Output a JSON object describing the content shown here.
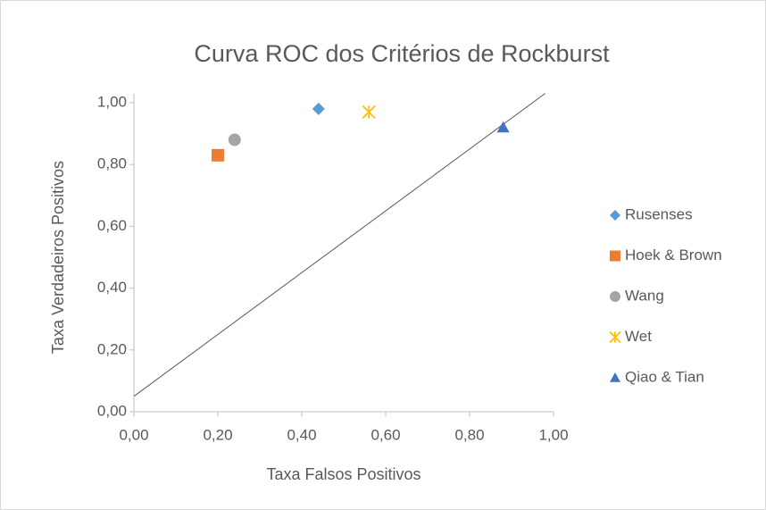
{
  "chart_data": {
    "type": "scatter",
    "title": "Curva ROC dos Critérios de Rockburst",
    "xlabel": "Taxa Falsos Positivos",
    "ylabel": "Taxa Verdadeiros Positivos",
    "xlim": [
      0,
      1
    ],
    "ylim": [
      0,
      1
    ],
    "xticks": [
      {
        "value": 0,
        "label": "0,00"
      },
      {
        "value": 0.2,
        "label": "0,20"
      },
      {
        "value": 0.4,
        "label": "0,40"
      },
      {
        "value": 0.6,
        "label": "0,60"
      },
      {
        "value": 0.8,
        "label": "0,80"
      },
      {
        "value": 1,
        "label": "1,00"
      }
    ],
    "yticks": [
      {
        "value": 0,
        "label": "0,00"
      },
      {
        "value": 0.2,
        "label": "0,20"
      },
      {
        "value": 0.4,
        "label": "0,40"
      },
      {
        "value": 0.6,
        "label": "0,60"
      },
      {
        "value": 0.8,
        "label": "0,80"
      },
      {
        "value": 1,
        "label": "1,00"
      }
    ],
    "grid": false,
    "legend": "right",
    "series": [
      {
        "name": "Rusenses",
        "color": "#5b9bd5",
        "marker": "diamond",
        "x": [
          0.44
        ],
        "y": [
          0.98
        ]
      },
      {
        "name": "Hoek & Brown",
        "color": "#ed7d31",
        "marker": "square",
        "x": [
          0.2
        ],
        "y": [
          0.83
        ]
      },
      {
        "name": "Wang",
        "color": "#a5a5a5",
        "marker": "circle",
        "x": [
          0.24
        ],
        "y": [
          0.88
        ]
      },
      {
        "name": "Wet",
        "color": "#ffc000",
        "marker": "asterisk",
        "x": [
          0.56
        ],
        "y": [
          0.97
        ]
      },
      {
        "name": "Qiao &  Tian",
        "color": "#4472c4",
        "marker": "triangle",
        "x": [
          0.88
        ],
        "y": [
          0.92
        ]
      }
    ],
    "reference_line": {
      "color": "#595959",
      "x": [
        0,
        0.98
      ],
      "y": [
        0.05,
        1.03
      ]
    }
  }
}
